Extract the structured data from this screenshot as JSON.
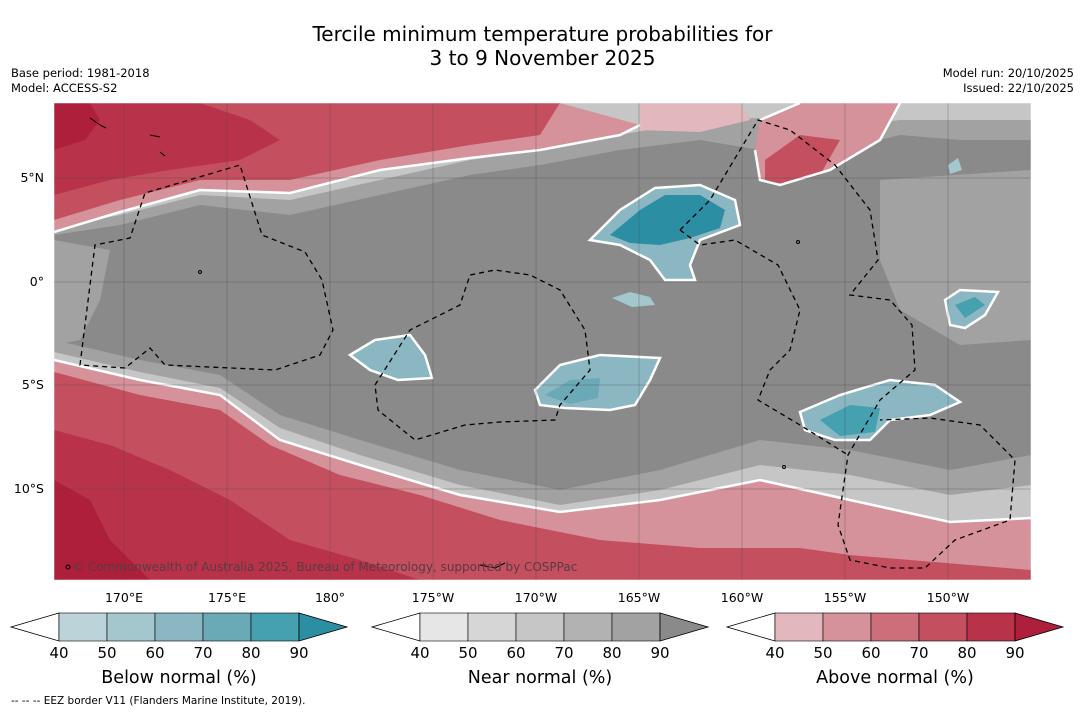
{
  "title_line1": "Tercile minimum temperature probabilities for",
  "title_line2": "3 to 9 November 2025",
  "base_period": "Base period: 1981-2018",
  "model": "Model: ACCESS-S2",
  "model_run": "Model run: 20/10/2025",
  "issued": "Issued: 22/10/2025",
  "copyright": "© Commonwealth of Australia 2025, Bureau of Meteorology, supported by COSPPac",
  "lon_labels": [
    "170°E",
    "175°E",
    "180°",
    "175°W",
    "170°W",
    "165°W",
    "160°W",
    "155°W",
    "150°W"
  ],
  "lat_labels": [
    "5°N",
    "0°",
    "5°S",
    "10°S"
  ],
  "colorbars": [
    {
      "name": "Below normal (%)",
      "ticks": [
        "40",
        "50",
        "60",
        "70",
        "80",
        "90"
      ],
      "colors": [
        "#bdd3da",
        "#a4c6cd",
        "#8bb7c2",
        "#6aa9b6",
        "#45a0b0",
        "#2c8ea2"
      ]
    },
    {
      "name": "Near normal (%)",
      "ticks": [
        "40",
        "50",
        "60",
        "70",
        "80",
        "90"
      ],
      "colors": [
        "#e6e6e6",
        "#d6d6d6",
        "#c6c6c6",
        "#b2b2b2",
        "#a2a2a2",
        "#8a8a8a"
      ]
    },
    {
      "name": "Above normal (%)",
      "ticks": [
        "40",
        "50",
        "60",
        "70",
        "80",
        "90"
      ],
      "colors": [
        "#e2b8be",
        "#d6929a",
        "#cc6f7a",
        "#c4505f",
        "#b8334a",
        "#ad1f3a"
      ]
    }
  ],
  "footer": "--  --  -- EEZ border V11 (Flanders Marine Institute, 2019)."
}
